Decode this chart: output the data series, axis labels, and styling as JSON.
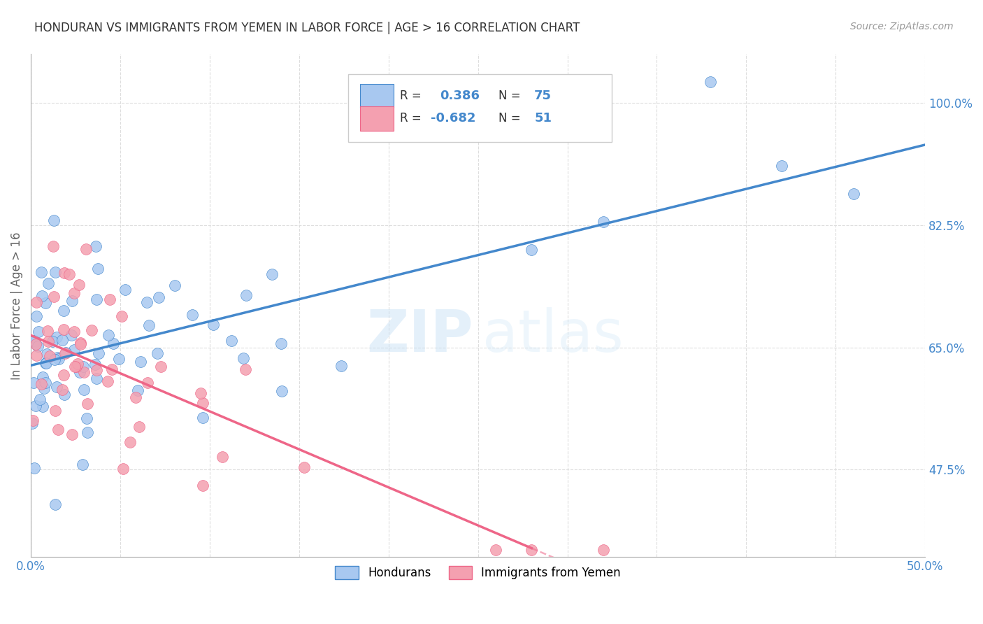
{
  "title": "HONDURAN VS IMMIGRANTS FROM YEMEN IN LABOR FORCE | AGE > 16 CORRELATION CHART",
  "source": "Source: ZipAtlas.com",
  "ylabel_ticks": [
    47.5,
    65.0,
    82.5,
    100.0
  ],
  "ylabel_label": "In Labor Force | Age > 16",
  "xmin": 0.0,
  "xmax": 50.0,
  "ymin": 35.0,
  "ymax": 107.0,
  "blue_R": 0.386,
  "blue_N": 75,
  "pink_R": -0.682,
  "pink_N": 51,
  "blue_color": "#a8c8f0",
  "blue_line_color": "#4488cc",
  "pink_color": "#f4a0b0",
  "pink_line_color": "#ee6688",
  "background_color": "#ffffff",
  "grid_color": "#dddddd",
  "title_color": "#333333",
  "label_color": "#4488cc",
  "watermark_color": "#c8ddf0",
  "legend_label1": "Hondurans",
  "legend_label2": "Immigrants from Yemen",
  "blue_seed": 42,
  "pink_seed": 7
}
